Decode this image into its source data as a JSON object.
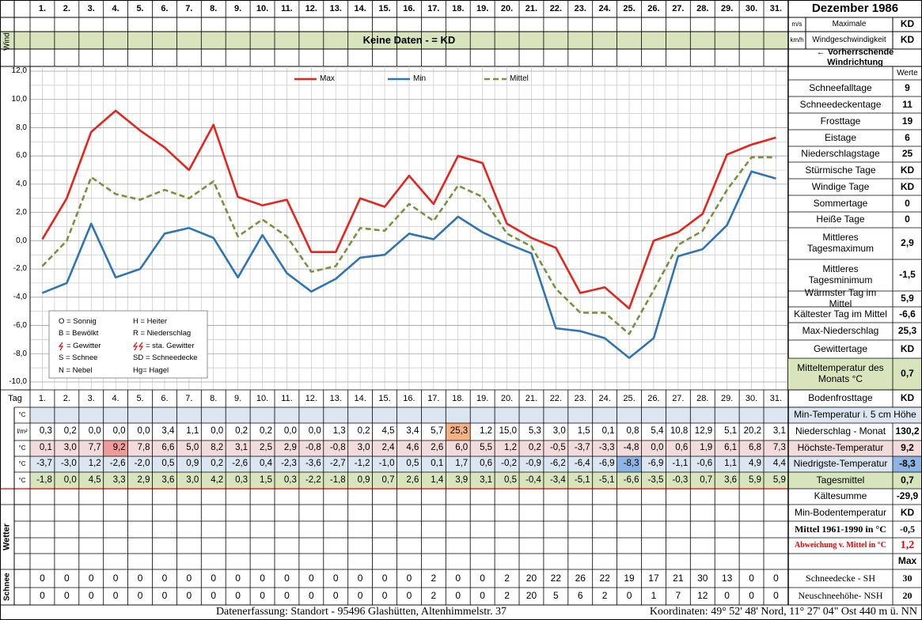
{
  "header": {
    "title": "Dezember 1986"
  },
  "wind": {
    "label": "Wind",
    "unit_ms": "m/s",
    "unit_kmh": "km/h",
    "max_label_1": "Maximale",
    "max_label_2": "Windgeschwindigkeit",
    "max_ms": "KD",
    "max_kmh": "KD",
    "no_data": "Keine Daten -  = KD",
    "direction": "← Vorherrschende Windrichtung"
  },
  "chart_data": {
    "type": "line",
    "legend": "top",
    "grid": true,
    "categories": [
      "1.",
      "2.",
      "3.",
      "4.",
      "5.",
      "6.",
      "7.",
      "8.",
      "9.",
      "10.",
      "11.",
      "12.",
      "13.",
      "14.",
      "15.",
      "16.",
      "17.",
      "18.",
      "19.",
      "20.",
      "21.",
      "22.",
      "23.",
      "24.",
      "25.",
      "26.",
      "27.",
      "28.",
      "29.",
      "30.",
      "31."
    ],
    "ylim": [
      -10,
      12
    ],
    "yticks": [
      {
        "value": -10,
        "label": "-10,0"
      },
      {
        "value": -8,
        "label": "-8,0"
      },
      {
        "value": -6,
        "label": "-6,0"
      },
      {
        "value": -4,
        "label": "-4,0"
      },
      {
        "value": -2,
        "label": "-2,0"
      },
      {
        "value": 0,
        "label": "0,0"
      },
      {
        "value": 2,
        "label": "2,0"
      },
      {
        "value": 4,
        "label": "4,0"
      },
      {
        "value": 6,
        "label": "6,0"
      },
      {
        "value": 8,
        "label": "8,0"
      },
      {
        "value": 10,
        "label": "10,0"
      },
      {
        "value": 12,
        "label": "12,0"
      }
    ],
    "series": [
      {
        "name": "Max",
        "color": "#e8231c",
        "values": [
          0.1,
          3.0,
          7.7,
          9.2,
          7.8,
          6.6,
          5.0,
          8.2,
          3.1,
          2.5,
          2.9,
          -0.8,
          -0.8,
          3.0,
          2.4,
          4.6,
          2.6,
          6.0,
          5.5,
          1.2,
          0.2,
          -0.5,
          -3.7,
          -3.3,
          -4.8,
          0.0,
          0.6,
          1.9,
          6.1,
          6.8,
          7.3
        ],
        "value_labels": [
          "0,1",
          "3,0",
          "7,7",
          "9,2",
          "7,8",
          "6,6",
          "5,0",
          "8,2",
          "3,1",
          "2,5",
          "2,9",
          "-0,8",
          "-0,8",
          "3,0",
          "2,4",
          "4,6",
          "2,6",
          "6,0",
          "5,5",
          "1,2",
          "0,2",
          "-0,5",
          "-3,7",
          "-3,3",
          "-4,8",
          "0,0",
          "0,6",
          "1,9",
          "6,1",
          "6,8",
          "7,3"
        ]
      },
      {
        "name": "Min",
        "color": "#2e75b6",
        "values": [
          -3.7,
          -3.0,
          1.2,
          -2.6,
          -2.0,
          0.5,
          0.9,
          0.2,
          -2.6,
          0.4,
          -2.3,
          -3.6,
          -2.7,
          -1.2,
          -1.0,
          0.5,
          0.1,
          1.7,
          0.6,
          -0.2,
          -0.9,
          -6.2,
          -6.4,
          -6.9,
          -8.3,
          -6.9,
          -1.1,
          -0.6,
          1.1,
          4.9,
          4.4
        ],
        "value_labels": [
          "-3,7",
          "-3,0",
          "1,2",
          "-2,6",
          "-2,0",
          "0,5",
          "0,9",
          "0,2",
          "-2,6",
          "0,4",
          "-2,3",
          "-3,6",
          "-2,7",
          "-1,2",
          "-1,0",
          "0,5",
          "0,1",
          "1,7",
          "0,6",
          "-0,2",
          "-0,9",
          "-6,2",
          "-6,4",
          "-6,9",
          "-8,3",
          "-6,9",
          "-1,1",
          "-0,6",
          "1,1",
          "4,9",
          "4,4"
        ]
      },
      {
        "name": "Mittel",
        "color": "#77933c",
        "dashed": true,
        "values": [
          -1.8,
          0.0,
          4.5,
          3.3,
          2.9,
          3.6,
          3.0,
          4.2,
          0.3,
          1.5,
          0.3,
          -2.2,
          -1.8,
          0.9,
          0.7,
          2.6,
          1.4,
          3.9,
          3.1,
          0.5,
          -0.4,
          -3.4,
          -5.1,
          -5.1,
          -6.6,
          -3.5,
          -0.3,
          0.7,
          3.6,
          5.9,
          5.9
        ],
        "value_labels": [
          "-1,8",
          "0,0",
          "4,5",
          "3,3",
          "2,9",
          "3,6",
          "3,0",
          "4,2",
          "0,3",
          "1,5",
          "0,3",
          "-2,2",
          "-1,8",
          "0,9",
          "0,7",
          "2,6",
          "1,4",
          "3,9",
          "3,1",
          "0,5",
          "-0,4",
          "-3,4",
          "-5,1",
          "-5,1",
          "-6,6",
          "-3,5",
          "-0,3",
          "0,7",
          "3,6",
          "5,9",
          "5,9"
        ]
      }
    ]
  },
  "legend_box": [
    "O = Sonnig",
    "H = Heiter",
    "B = Bewölkt",
    "R = Niederschlag",
    "= Gewitter",
    "= sta. Gewitter",
    "S = Schnee",
    "SD = Schneedecke",
    "N = Nebel",
    "Hg= Hagel"
  ],
  "table": {
    "day_label": "Tag",
    "units": [
      "°C",
      "l/m²",
      "°C",
      "°C",
      "°C"
    ],
    "wetter_label": "Wetter",
    "schnee_label": "Schnee",
    "precipitation": [
      "0,3",
      "0,2",
      "0,0",
      "0,0",
      "0,0",
      "3,4",
      "1,1",
      "0,0",
      "0,2",
      "0,2",
      "0,0",
      "0,0",
      "1,3",
      "0,2",
      "4,5",
      "3,4",
      "5,7",
      "25,3",
      "1,2",
      "15,0",
      "5,3",
      "3,0",
      "1,5",
      "0,1",
      "0,8",
      "5,4",
      "10,8",
      "12,9",
      "5,1",
      "20,2",
      "3,1"
    ],
    "snow_depth": [
      0,
      0,
      0,
      0,
      0,
      0,
      0,
      0,
      0,
      0,
      0,
      0,
      0,
      0,
      0,
      0,
      2,
      0,
      0,
      2,
      20,
      22,
      26,
      22,
      19,
      17,
      21,
      30,
      13,
      0,
      0
    ],
    "new_snow": [
      0,
      0,
      0,
      0,
      0,
      0,
      0,
      0,
      0,
      0,
      0,
      0,
      0,
      0,
      0,
      0,
      2,
      0,
      0,
      2,
      20,
      5,
      6,
      2,
      0,
      1,
      7,
      12,
      0,
      0,
      0
    ]
  },
  "stats": {
    "header": "Werte",
    "rows": [
      {
        "label": "Schneefalltage",
        "value": "9"
      },
      {
        "label": "Schneedeckentage",
        "value": "11"
      },
      {
        "label": "Frosttage",
        "value": "19"
      },
      {
        "label": "Eistage",
        "value": "6"
      },
      {
        "label": "Niederschlagstage",
        "value": "25"
      },
      {
        "label": "Stürmische Tage",
        "value": "KD"
      },
      {
        "label": "Windige Tage",
        "value": "KD"
      },
      {
        "label": "Sommertage",
        "value": "0"
      },
      {
        "label": "Heiße Tage",
        "value": "0"
      },
      {
        "label": "Mittleres Tagesmaximum",
        "value": "2,9"
      },
      {
        "label": "Mittleres Tagesminimum",
        "value": "-1,5"
      },
      {
        "label": "Wärmster Tag im Mittel",
        "value": "5,9"
      },
      {
        "label": "Kältester Tag im Mittel",
        "value": "-6,6"
      },
      {
        "label": "Max-Niederschlag",
        "value": "25,3"
      },
      {
        "label": "Gewittertage",
        "value": "KD"
      },
      {
        "label": "Mitteltemperatur des Monats °C",
        "value": "0,7"
      },
      {
        "label": "Bodenfrosttage",
        "value": "KD"
      }
    ]
  },
  "summary": [
    {
      "label": "Min-Temperatur i. 5 cm Höhe"
    },
    {
      "label": "Niederschlag - Monat",
      "value": "130,2"
    },
    {
      "label": "Höchste-Temperatur",
      "value": "9,2"
    },
    {
      "label": "Niedrigste-Temperatur",
      "value": "-8,3"
    },
    {
      "label": "Tagesmittel",
      "value": "0,7"
    },
    {
      "label": "Kältesumme",
      "value": "-29,9"
    },
    {
      "label": "Min-Bodentemperatur",
      "value": "KD"
    },
    {
      "label": "Mittel 1961-1990 in °C",
      "value": "-0,5"
    },
    {
      "label": "Abweichung v. Mittel in °C",
      "value": "1,2"
    },
    {
      "value": "Max"
    },
    {
      "label": "Schneedecke -  SH",
      "value": "30"
    },
    {
      "label": "Neuschneehöhe- NSH",
      "value": "20"
    }
  ],
  "footer": {
    "left": "Datenerfassung:  Standort -  95496  Glashütten, Altenhimmelstr. 37",
    "right": "Koordinaten:  49° 52' 48' Nord,  11° 27' 04\" Ost   440 m ü. NN"
  }
}
